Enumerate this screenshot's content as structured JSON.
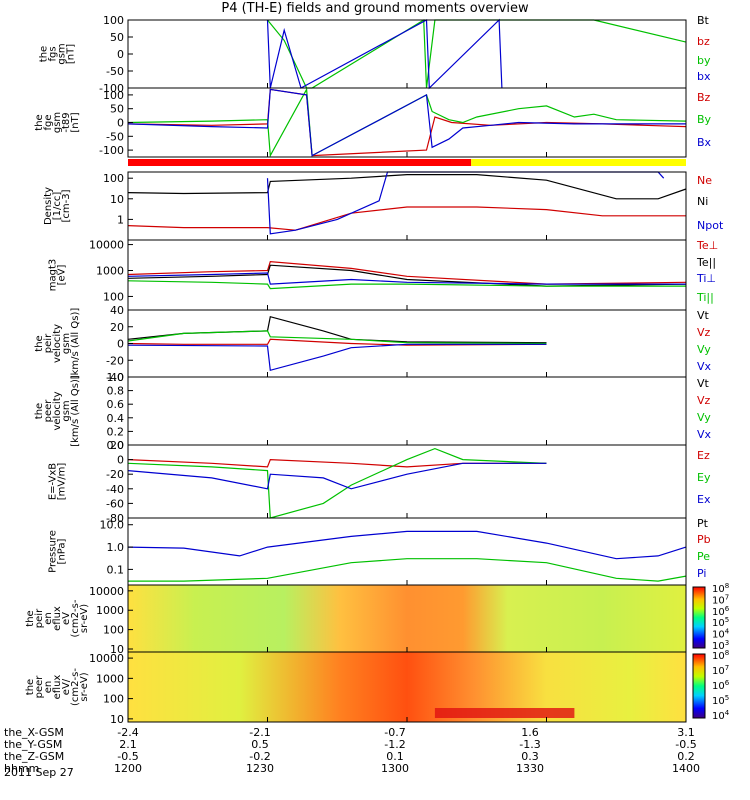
{
  "title": "P4 (TH-E) fields and ground moments overview",
  "date": "2011 Sep 27",
  "ephemeris": {
    "rows": [
      {
        "label": "the_X-GSM",
        "values": [
          "-2.4",
          "-2.1",
          "-0.7",
          "1.6",
          "3.1"
        ]
      },
      {
        "label": "the_Y-GSM",
        "values": [
          "2.1",
          "0.5",
          "-1.2",
          "-1.3",
          "-0.5"
        ]
      },
      {
        "label": "the_Z-GSM",
        "values": [
          "-0.5",
          "-0.2",
          "0.1",
          "0.3",
          "0.2"
        ]
      },
      {
        "label": "hhmm",
        "values": [
          "1200",
          "1230",
          "1300",
          "1330",
          "1400"
        ]
      }
    ]
  },
  "colorbar_exponents": {
    "ion": [
      "3",
      "4",
      "5",
      "6",
      "7",
      "8"
    ],
    "electron": [
      "4",
      "5",
      "6",
      "7",
      "8"
    ]
  },
  "chart_data": [
    {
      "type": "line",
      "ylabel": [
        "the",
        "fgs",
        "gsm",
        "[nT]"
      ],
      "ylim": [
        -100,
        100
      ],
      "yticks": [
        "100",
        "50",
        "0",
        "-50",
        "-100"
      ],
      "legend": [
        {
          "name": "Bt",
          "color": "#000000"
        },
        {
          "name": "bz",
          "color": "#d00000"
        },
        {
          "name": "by",
          "color": "#00c000"
        },
        {
          "name": "bx",
          "color": "#0000d0"
        }
      ],
      "series": [
        {
          "name": "by",
          "color": "#00c000",
          "x": [
            12.5,
            12.56,
            12.64,
            12.66,
            13.06,
            13.07,
            13.1,
            13.67,
            14.0
          ],
          "y": [
            100,
            40,
            -100,
            -100,
            100,
            -100,
            100,
            100,
            35
          ]
        },
        {
          "name": "bx",
          "color": "#0000d0",
          "x": [
            12.5,
            12.51,
            12.56,
            12.62,
            13.07,
            13.08,
            13.33,
            13.34
          ],
          "y": [
            100,
            -100,
            70,
            -100,
            100,
            -100,
            100,
            -100
          ]
        }
      ]
    },
    {
      "type": "line",
      "ylabel": [
        "the",
        "fge",
        "gsm",
        "-t89",
        "[nT]"
      ],
      "ylim": [
        -125,
        125
      ],
      "yticks": [
        "100",
        "50",
        "0",
        "-50",
        "-100"
      ],
      "legend": [
        {
          "name": "Bz",
          "color": "#d00000"
        },
        {
          "name": "By",
          "color": "#00c000"
        },
        {
          "name": "Bx",
          "color": "#0000d0"
        }
      ],
      "mode_bar": {
        "segments": [
          {
            "from": 12.0,
            "to": 13.23,
            "color": "#ff0000"
          },
          {
            "from": 13.23,
            "to": 14.0,
            "color": "#ffff00"
          }
        ]
      },
      "series": [
        {
          "name": "Bz",
          "color": "#d00000",
          "x": [
            12.0,
            12.3,
            12.5,
            12.51,
            12.64,
            12.66,
            13.07,
            13.1,
            13.16,
            13.3,
            13.5,
            13.7,
            13.85,
            14.0
          ],
          "y": [
            -5,
            -10,
            -5,
            120,
            100,
            -120,
            -100,
            20,
            0,
            -10,
            0,
            -5,
            -10,
            -15
          ]
        },
        {
          "name": "By",
          "color": "#00c000",
          "x": [
            12.0,
            12.3,
            12.5,
            12.51,
            12.64,
            12.66,
            13.07,
            13.09,
            13.15,
            13.2,
            13.25,
            13.4,
            13.5,
            13.6,
            13.67,
            13.75,
            14.0
          ],
          "y": [
            0,
            5,
            10,
            -120,
            120,
            -120,
            100,
            40,
            10,
            0,
            20,
            50,
            60,
            20,
            30,
            10,
            5
          ]
        },
        {
          "name": "Bx",
          "color": "#0000d0",
          "x": [
            12.0,
            12.3,
            12.5,
            12.51,
            12.64,
            12.66,
            13.07,
            13.09,
            13.15,
            13.2,
            13.3,
            13.4,
            13.6,
            14.0
          ],
          "y": [
            -5,
            -15,
            -20,
            120,
            100,
            -120,
            100,
            -90,
            -60,
            -20,
            -10,
            0,
            -5,
            -5
          ]
        }
      ]
    },
    {
      "type": "line",
      "ylabel": [
        "Density",
        "[1/cc]",
        "[cm-3]"
      ],
      "yscale": "log",
      "ylim": [
        0.1,
        200
      ],
      "yticks": [
        "100",
        "10",
        "1"
      ],
      "legend": [
        {
          "name": "Ne",
          "color": "#d00000"
        },
        {
          "name": "Ni",
          "color": "#000000"
        },
        {
          "name": "Npot",
          "color": "#0000d0"
        }
      ],
      "series": [
        {
          "name": "Ni",
          "color": "#000000",
          "x": [
            12.0,
            12.2,
            12.5,
            12.51,
            12.8,
            13.0,
            13.25,
            13.5,
            13.75,
            13.9,
            14.0
          ],
          "y": [
            20,
            18,
            20,
            70,
            100,
            150,
            150,
            80,
            10,
            10,
            30
          ]
        },
        {
          "name": "Ne",
          "color": "#d00000",
          "x": [
            12.0,
            12.2,
            12.5,
            12.6,
            12.8,
            13.0,
            13.25,
            13.5,
            13.7,
            14.0
          ],
          "y": [
            0.5,
            0.4,
            0.4,
            0.3,
            2,
            4,
            4,
            3,
            1.5,
            1.5
          ]
        },
        {
          "name": "Npot",
          "color": "#0000d0",
          "x": [
            12.5,
            12.51,
            12.6,
            12.75,
            12.9,
            12.93,
            13.9,
            13.92
          ],
          "y": [
            100,
            0.2,
            0.3,
            1.0,
            8,
            200,
            200,
            100
          ]
        }
      ]
    },
    {
      "type": "line",
      "ylabel": [
        "magt3",
        "[eV]"
      ],
      "yscale": "log",
      "ylim": [
        30,
        15000
      ],
      "yticks": [
        "10000",
        "1000",
        "100"
      ],
      "legend": [
        {
          "name": "Te⊥",
          "color": "#d00000"
        },
        {
          "name": "Te||",
          "color": "#000000"
        },
        {
          "name": "Ti⊥",
          "color": "#0000d0"
        },
        {
          "name": "Ti||",
          "color": "#00c000"
        }
      ],
      "series": [
        {
          "name": "Te⊥",
          "color": "#d00000",
          "x": [
            12.0,
            12.3,
            12.5,
            12.51,
            12.8,
            13.0,
            13.5,
            14.0
          ],
          "y": [
            700,
            900,
            1000,
            2200,
            1200,
            600,
            300,
            350
          ]
        },
        {
          "name": "Te||",
          "color": "#000000",
          "x": [
            12.0,
            12.3,
            12.5,
            12.51,
            12.8,
            13.0,
            13.5,
            14.0
          ],
          "y": [
            500,
            600,
            700,
            1600,
            1000,
            450,
            250,
            300
          ]
        },
        {
          "name": "Ti⊥",
          "color": "#0000d0",
          "x": [
            12.0,
            12.3,
            12.5,
            12.51,
            12.8,
            13.0,
            13.5,
            14.0
          ],
          "y": [
            600,
            700,
            800,
            300,
            450,
            350,
            300,
            300
          ]
        },
        {
          "name": "Ti||",
          "color": "#00c000",
          "x": [
            12.0,
            12.3,
            12.5,
            12.51,
            12.8,
            13.0,
            13.5,
            14.0
          ],
          "y": [
            400,
            350,
            300,
            200,
            300,
            300,
            250,
            250
          ]
        }
      ]
    },
    {
      "type": "line",
      "ylabel": [
        "the",
        "peir",
        "velocity",
        "gsm",
        "[km/s (All Qs)]"
      ],
      "ylim": [
        -40,
        40
      ],
      "yticks": [
        "40",
        "20",
        "0",
        "-20",
        "-40"
      ],
      "legend": [
        {
          "name": "Vt",
          "color": "#000000"
        },
        {
          "name": "Vz",
          "color": "#d00000"
        },
        {
          "name": "Vy",
          "color": "#00c000"
        },
        {
          "name": "Vx",
          "color": "#0000d0"
        }
      ],
      "series": [
        {
          "name": "Vt",
          "color": "#000000",
          "x": [
            12.0,
            12.2,
            12.5,
            12.51,
            12.7,
            12.8,
            13.0,
            13.5
          ],
          "y": [
            5,
            12,
            15,
            32,
            15,
            5,
            2,
            1
          ]
        },
        {
          "name": "Vz",
          "color": "#d00000",
          "x": [
            12.0,
            12.2,
            12.5,
            12.51,
            12.8,
            13.0,
            13.5
          ],
          "y": [
            0,
            -1,
            -1,
            5,
            0,
            -2,
            -1
          ]
        },
        {
          "name": "Vy",
          "color": "#00c000",
          "x": [
            12.0,
            12.2,
            12.5,
            12.51,
            12.8,
            13.0,
            13.5
          ],
          "y": [
            3,
            12,
            15,
            8,
            5,
            1,
            0
          ]
        },
        {
          "name": "Vx",
          "color": "#0000d0",
          "x": [
            12.0,
            12.5,
            12.51,
            12.7,
            12.8,
            13.0,
            13.5
          ],
          "y": [
            -2,
            -3,
            -32,
            -15,
            -5,
            -1,
            -1
          ]
        }
      ]
    },
    {
      "type": "line",
      "ylabel": [
        "the",
        "peer",
        "velocity",
        "gsm",
        "[km/s (All Qs)]"
      ],
      "ylim": [
        0,
        1.0
      ],
      "yticks": [
        "1.0",
        "0.8",
        "0.6",
        "0.4",
        "0.2",
        "0.0"
      ],
      "legend": [
        {
          "name": "Vt",
          "color": "#000000"
        },
        {
          "name": "Vz",
          "color": "#d00000"
        },
        {
          "name": "Vy",
          "color": "#00c000"
        },
        {
          "name": "Vx",
          "color": "#0000d0"
        }
      ],
      "series": []
    },
    {
      "type": "line",
      "ylabel": [
        "E=-VxB",
        "[mV/m]"
      ],
      "ylim": [
        -80,
        20
      ],
      "yticks": [
        "20",
        "0",
        "-20",
        "-40",
        "-60",
        "-80"
      ],
      "legend": [
        {
          "name": "Ez",
          "color": "#d00000"
        },
        {
          "name": "Ey",
          "color": "#00c000"
        },
        {
          "name": "Ex",
          "color": "#0000d0"
        }
      ],
      "series": [
        {
          "name": "Ez",
          "color": "#d00000",
          "x": [
            12.0,
            12.3,
            12.5,
            12.51,
            12.8,
            13.0,
            13.2,
            13.5
          ],
          "y": [
            0,
            -5,
            -10,
            0,
            -5,
            -10,
            -5,
            -5
          ]
        },
        {
          "name": "Ey",
          "color": "#00c000",
          "x": [
            12.0,
            12.3,
            12.5,
            12.51,
            12.7,
            12.8,
            13.0,
            13.1,
            13.2,
            13.5
          ],
          "y": [
            -5,
            -10,
            -15,
            -80,
            -60,
            -35,
            0,
            15,
            0,
            -5
          ]
        },
        {
          "name": "Ex",
          "color": "#0000d0",
          "x": [
            12.0,
            12.3,
            12.5,
            12.51,
            12.7,
            12.8,
            13.0,
            13.2,
            13.5
          ],
          "y": [
            -15,
            -25,
            -40,
            -20,
            -25,
            -40,
            -20,
            -5,
            -5
          ]
        }
      ]
    },
    {
      "type": "line",
      "ylabel": [
        "Pressure",
        "[nPa]"
      ],
      "yscale": "log",
      "ylim": [
        0.02,
        20
      ],
      "yticks": [
        "10.0",
        "1.0",
        "0.1"
      ],
      "legend": [
        {
          "name": "Pt",
          "color": "#000000"
        },
        {
          "name": "Pb",
          "color": "#d00000"
        },
        {
          "name": "Pe",
          "color": "#00c000"
        },
        {
          "name": "Pi",
          "color": "#0000d0"
        }
      ],
      "series": [
        {
          "name": "Pi",
          "color": "#0000d0",
          "x": [
            12.0,
            12.2,
            12.4,
            12.5,
            12.8,
            13.0,
            13.25,
            13.5,
            13.75,
            13.9,
            14.0
          ],
          "y": [
            1.0,
            0.9,
            0.4,
            1.0,
            3,
            5,
            5,
            1.5,
            0.3,
            0.4,
            1.0
          ]
        },
        {
          "name": "Pe",
          "color": "#00c000",
          "x": [
            12.0,
            12.2,
            12.5,
            12.8,
            13.0,
            13.25,
            13.5,
            13.75,
            13.9,
            14.0
          ],
          "y": [
            0.03,
            0.03,
            0.04,
            0.2,
            0.3,
            0.3,
            0.2,
            0.04,
            0.03,
            0.05
          ]
        }
      ]
    },
    {
      "type": "heatmap",
      "ylabel": [
        "the",
        "peir",
        "en",
        "eflux",
        "eV",
        "(cm2-s-",
        "sr-eV)"
      ],
      "yscale": "log",
      "ylim": [
        7,
        20000
      ],
      "yticks": [
        "10000",
        "1000",
        "100",
        "10"
      ],
      "colorbar": {
        "scale": "log",
        "range": [
          1000,
          100000000
        ]
      }
    },
    {
      "type": "heatmap",
      "ylabel": [
        "the",
        "peer",
        "en",
        "eflux",
        "eV/",
        "(cm2-s-",
        "sr-eV)"
      ],
      "yscale": "log",
      "ylim": [
        7,
        20000
      ],
      "yticks": [
        "10000",
        "1000",
        "100",
        "10"
      ],
      "colorbar": {
        "scale": "log",
        "range": [
          10000,
          100000000
        ]
      }
    }
  ]
}
